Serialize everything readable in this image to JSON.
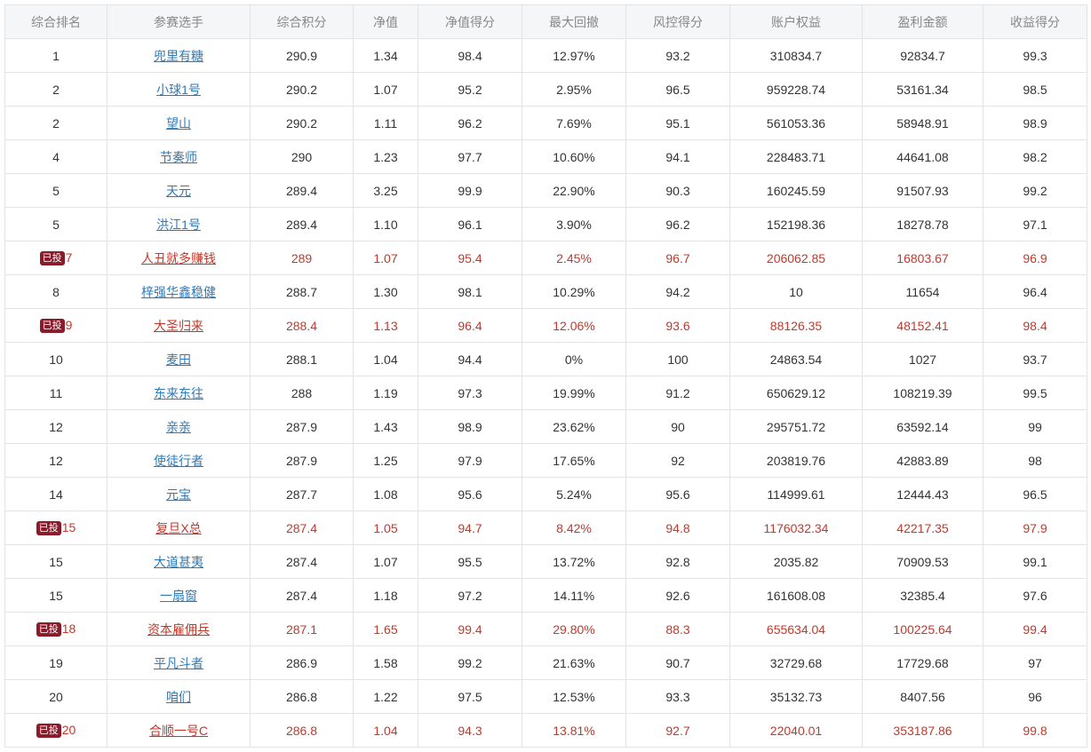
{
  "columns": [
    "综合排名",
    "参赛选手",
    "综合积分",
    "净值",
    "净值得分",
    "最大回撤",
    "风控得分",
    "账户权益",
    "盈利金额",
    "收益得分"
  ],
  "badge_label": "已投",
  "colors": {
    "header_bg": "#f5f6f8",
    "header_text": "#888888",
    "link": "#2e7ab8",
    "invested_text": "#c0392b",
    "badge_bg": "#8b1a2b"
  },
  "rows": [
    {
      "rank": "1",
      "invested": false,
      "player": "兜里有糖",
      "score": "290.9",
      "nav": "1.34",
      "nav_score": "98.4",
      "max_dd": "12.97%",
      "risk_score": "93.2",
      "equity": "310834.7",
      "profit": "92834.7",
      "return_score": "99.3"
    },
    {
      "rank": "2",
      "invested": false,
      "player": "小球1号",
      "score": "290.2",
      "nav": "1.07",
      "nav_score": "95.2",
      "max_dd": "2.95%",
      "risk_score": "96.5",
      "equity": "959228.74",
      "profit": "53161.34",
      "return_score": "98.5"
    },
    {
      "rank": "2",
      "invested": false,
      "player": "望山",
      "score": "290.2",
      "nav": "1.11",
      "nav_score": "96.2",
      "max_dd": "7.69%",
      "risk_score": "95.1",
      "equity": "561053.36",
      "profit": "58948.91",
      "return_score": "98.9"
    },
    {
      "rank": "4",
      "invested": false,
      "player": "节奏师",
      "score": "290",
      "nav": "1.23",
      "nav_score": "97.7",
      "max_dd": "10.60%",
      "risk_score": "94.1",
      "equity": "228483.71",
      "profit": "44641.08",
      "return_score": "98.2"
    },
    {
      "rank": "5",
      "invested": false,
      "player": "天元",
      "score": "289.4",
      "nav": "3.25",
      "nav_score": "99.9",
      "max_dd": "22.90%",
      "risk_score": "90.3",
      "equity": "160245.59",
      "profit": "91507.93",
      "return_score": "99.2"
    },
    {
      "rank": "5",
      "invested": false,
      "player": "洪江1号",
      "score": "289.4",
      "nav": "1.10",
      "nav_score": "96.1",
      "max_dd": "3.90%",
      "risk_score": "96.2",
      "equity": "152198.36",
      "profit": "18278.78",
      "return_score": "97.1"
    },
    {
      "rank": "7",
      "invested": true,
      "player": "人丑就多赚钱",
      "score": "289",
      "nav": "1.07",
      "nav_score": "95.4",
      "max_dd": "2.45%",
      "risk_score": "96.7",
      "equity": "206062.85",
      "profit": "16803.67",
      "return_score": "96.9"
    },
    {
      "rank": "8",
      "invested": false,
      "player": "梓强华鑫稳健",
      "score": "288.7",
      "nav": "1.30",
      "nav_score": "98.1",
      "max_dd": "10.29%",
      "risk_score": "94.2",
      "equity": "10",
      "profit": "11654",
      "return_score": "96.4"
    },
    {
      "rank": "9",
      "invested": true,
      "player": "大圣归来",
      "score": "288.4",
      "nav": "1.13",
      "nav_score": "96.4",
      "max_dd": "12.06%",
      "risk_score": "93.6",
      "equity": "88126.35",
      "profit": "48152.41",
      "return_score": "98.4"
    },
    {
      "rank": "10",
      "invested": false,
      "player": "麦田",
      "score": "288.1",
      "nav": "1.04",
      "nav_score": "94.4",
      "max_dd": "0%",
      "risk_score": "100",
      "equity": "24863.54",
      "profit": "1027",
      "return_score": "93.7"
    },
    {
      "rank": "11",
      "invested": false,
      "player": "东来东往",
      "score": "288",
      "nav": "1.19",
      "nav_score": "97.3",
      "max_dd": "19.99%",
      "risk_score": "91.2",
      "equity": "650629.12",
      "profit": "108219.39",
      "return_score": "99.5"
    },
    {
      "rank": "12",
      "invested": false,
      "player": "亲亲",
      "score": "287.9",
      "nav": "1.43",
      "nav_score": "98.9",
      "max_dd": "23.62%",
      "risk_score": "90",
      "equity": "295751.72",
      "profit": "63592.14",
      "return_score": "99"
    },
    {
      "rank": "12",
      "invested": false,
      "player": "使徒行者",
      "score": "287.9",
      "nav": "1.25",
      "nav_score": "97.9",
      "max_dd": "17.65%",
      "risk_score": "92",
      "equity": "203819.76",
      "profit": "42883.89",
      "return_score": "98"
    },
    {
      "rank": "14",
      "invested": false,
      "player": "元宝",
      "score": "287.7",
      "nav": "1.08",
      "nav_score": "95.6",
      "max_dd": "5.24%",
      "risk_score": "95.6",
      "equity": "114999.61",
      "profit": "12444.43",
      "return_score": "96.5"
    },
    {
      "rank": "15",
      "invested": true,
      "player": "复旦X总",
      "score": "287.4",
      "nav": "1.05",
      "nav_score": "94.7",
      "max_dd": "8.42%",
      "risk_score": "94.8",
      "equity": "1176032.34",
      "profit": "42217.35",
      "return_score": "97.9"
    },
    {
      "rank": "15",
      "invested": false,
      "player": "大道甚夷",
      "score": "287.4",
      "nav": "1.07",
      "nav_score": "95.5",
      "max_dd": "13.72%",
      "risk_score": "92.8",
      "equity": "2035.82",
      "profit": "70909.53",
      "return_score": "99.1"
    },
    {
      "rank": "15",
      "invested": false,
      "player": "一扇窗",
      "score": "287.4",
      "nav": "1.18",
      "nav_score": "97.2",
      "max_dd": "14.11%",
      "risk_score": "92.6",
      "equity": "161608.08",
      "profit": "32385.4",
      "return_score": "97.6"
    },
    {
      "rank": "18",
      "invested": true,
      "player": "资本雇佣兵",
      "score": "287.1",
      "nav": "1.65",
      "nav_score": "99.4",
      "max_dd": "29.80%",
      "risk_score": "88.3",
      "equity": "655634.04",
      "profit": "100225.64",
      "return_score": "99.4"
    },
    {
      "rank": "19",
      "invested": false,
      "player": "平凡斗者",
      "score": "286.9",
      "nav": "1.58",
      "nav_score": "99.2",
      "max_dd": "21.63%",
      "risk_score": "90.7",
      "equity": "32729.68",
      "profit": "17729.68",
      "return_score": "97"
    },
    {
      "rank": "20",
      "invested": false,
      "player": "咱们",
      "score": "286.8",
      "nav": "1.22",
      "nav_score": "97.5",
      "max_dd": "12.53%",
      "risk_score": "93.3",
      "equity": "35132.73",
      "profit": "8407.56",
      "return_score": "96"
    },
    {
      "rank": "20",
      "invested": true,
      "player": "合顺一号C",
      "score": "286.8",
      "nav": "1.04",
      "nav_score": "94.3",
      "max_dd": "13.81%",
      "risk_score": "92.7",
      "equity": "22040.01",
      "profit": "353187.86",
      "return_score": "99.8"
    }
  ]
}
